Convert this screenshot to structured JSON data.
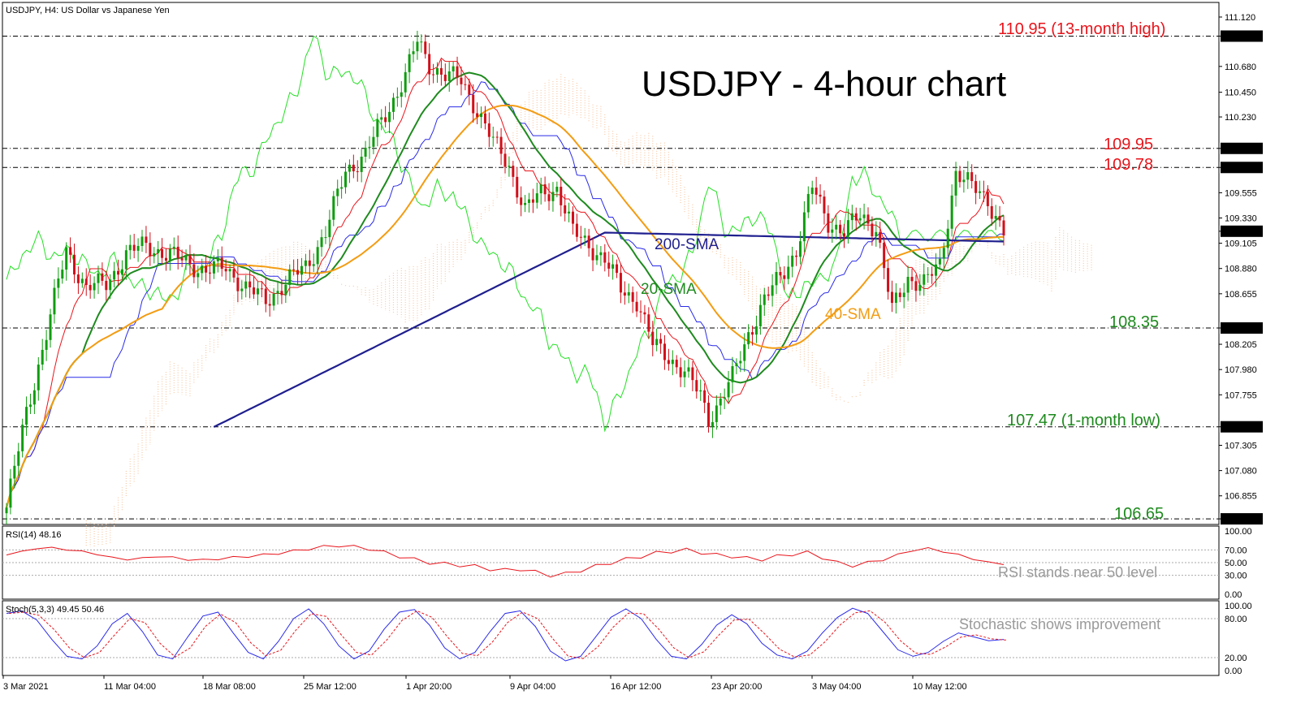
{
  "chart_data": {
    "type": "candlestick",
    "symbol_header": "USDJPY, H4:  US Dollar vs Japanese Yen",
    "title": "USDJPY - 4-hour chart",
    "price_axis": {
      "range": [
        106.6,
        111.25
      ],
      "ticks": [
        "111.120",
        "110.950",
        "110.680",
        "110.450",
        "110.230",
        "109.950",
        "109.780",
        "109.555",
        "109.330",
        "109.212",
        "109.105",
        "108.880",
        "108.655",
        "108.350",
        "108.205",
        "107.980",
        "107.755",
        "107.470",
        "107.305",
        "107.080",
        "106.855",
        "106.650"
      ],
      "tick_values": [
        111.12,
        110.95,
        110.68,
        110.45,
        110.23,
        109.95,
        109.78,
        109.555,
        109.33,
        109.212,
        109.105,
        108.88,
        108.655,
        108.35,
        108.205,
        107.98,
        107.755,
        107.47,
        107.305,
        107.08,
        106.855,
        106.65
      ],
      "highlighted_ticks": [
        110.95,
        109.95,
        109.78,
        109.212,
        108.35,
        107.47,
        106.65
      ]
    },
    "levels": [
      {
        "value": 110.95,
        "label": "110.95 (13-month high)",
        "color": "#e8141b"
      },
      {
        "value": 109.95,
        "label": "109.95",
        "color": "#e8141b"
      },
      {
        "value": 109.78,
        "label": "109.78",
        "color": "#e8141b"
      },
      {
        "value": 108.35,
        "label": "108.35",
        "color": "#1e8a1e"
      },
      {
        "value": 107.47,
        "label": "107.47 (1-month low)",
        "color": "#1e8a1e"
      },
      {
        "value": 106.65,
        "label": "106.65",
        "color": "#1e8a1e"
      }
    ],
    "ma_labels": [
      {
        "label": "200-SMA",
        "color": "#1f1f8f"
      },
      {
        "label": "20-SMA",
        "color": "#1e8a1e"
      },
      {
        "label": "40-SMA",
        "color": "#f39c12"
      }
    ],
    "x_labels": [
      "3 Mar 2021",
      "11 Mar 04:00",
      "18 Mar 08:00",
      "25 Mar 12:00",
      "1 Apr 20:00",
      "9 Apr 04:00",
      "16 Apr 12:00",
      "23 Apr 20:00",
      "3 May 04:00",
      "10 May 12:00"
    ],
    "close_keypoints": [
      [
        0,
        106.75
      ],
      [
        5,
        107.6
      ],
      [
        10,
        108.3
      ],
      [
        15,
        109.05
      ],
      [
        20,
        108.7
      ],
      [
        25,
        108.75
      ],
      [
        30,
        109.0
      ],
      [
        35,
        109.1
      ],
      [
        40,
        109.0
      ],
      [
        45,
        108.95
      ],
      [
        50,
        108.85
      ],
      [
        55,
        108.9
      ],
      [
        60,
        108.7
      ],
      [
        65,
        108.6
      ],
      [
        70,
        108.75
      ],
      [
        75,
        108.9
      ],
      [
        80,
        109.2
      ],
      [
        85,
        109.75
      ],
      [
        90,
        109.9
      ],
      [
        95,
        110.25
      ],
      [
        100,
        110.6
      ],
      [
        103,
        110.9
      ],
      [
        106,
        110.7
      ],
      [
        110,
        110.6
      ],
      [
        114,
        110.55
      ],
      [
        118,
        110.3
      ],
      [
        122,
        110.0
      ],
      [
        126,
        109.8
      ],
      [
        130,
        109.4
      ],
      [
        134,
        109.55
      ],
      [
        138,
        109.6
      ],
      [
        142,
        109.2
      ],
      [
        146,
        109.1
      ],
      [
        150,
        108.95
      ],
      [
        154,
        108.7
      ],
      [
        158,
        108.6
      ],
      [
        162,
        108.2
      ],
      [
        166,
        108.1
      ],
      [
        170,
        107.95
      ],
      [
        174,
        107.75
      ],
      [
        176,
        107.55
      ],
      [
        178,
        107.65
      ],
      [
        182,
        107.9
      ],
      [
        186,
        108.3
      ],
      [
        190,
        108.6
      ],
      [
        194,
        108.8
      ],
      [
        198,
        109.05
      ],
      [
        202,
        109.6
      ],
      [
        206,
        109.3
      ],
      [
        210,
        109.2
      ],
      [
        214,
        109.35
      ],
      [
        218,
        109.25
      ],
      [
        222,
        108.5
      ],
      [
        226,
        108.8
      ],
      [
        230,
        108.75
      ],
      [
        234,
        108.9
      ],
      [
        238,
        109.75
      ],
      [
        242,
        109.6
      ],
      [
        246,
        109.5
      ],
      [
        250,
        109.2
      ]
    ],
    "sma200": {
      "start": 108.8,
      "slope": 0.0105
    },
    "rsi": {
      "label": "RSI(14) 48.16",
      "ticks": [
        "100.00",
        "70.00",
        "50.00",
        "30.00",
        "0.00"
      ],
      "tick_values": [
        100,
        70,
        50,
        30,
        0
      ],
      "annotation": "RSI stands near 50 level",
      "values": [
        62,
        68,
        72,
        74,
        70,
        68,
        63,
        58,
        55,
        57,
        60,
        58,
        55,
        54,
        56,
        58,
        60,
        62,
        65,
        68,
        72,
        75,
        77,
        75,
        72,
        66,
        60,
        55,
        50,
        48,
        46,
        44,
        40,
        38,
        40,
        35,
        30,
        32,
        38,
        44,
        50,
        55,
        60,
        65,
        68,
        70,
        66,
        62,
        60,
        57,
        55,
        60,
        63,
        66,
        58,
        50,
        45,
        50,
        55,
        62,
        70,
        72,
        68,
        62,
        56,
        50,
        48
      ]
    },
    "stochastic": {
      "label": "Stoch(5,3,3) 49.45 50.46",
      "ticks": [
        "100.00",
        "80.00",
        "20.00",
        "0.00"
      ],
      "tick_values": [
        100,
        80,
        20,
        0
      ],
      "annotation": "Stochastic shows improvement",
      "k": [
        88,
        92,
        78,
        48,
        22,
        18,
        38,
        72,
        88,
        60,
        24,
        18,
        52,
        84,
        90,
        58,
        28,
        18,
        45,
        80,
        95,
        72,
        38,
        18,
        30,
        64,
        90,
        94,
        70,
        35,
        18,
        28,
        60,
        88,
        92,
        68,
        30,
        15,
        22,
        52,
        82,
        95,
        80,
        48,
        22,
        18,
        40,
        70,
        86,
        72,
        42,
        24,
        18,
        30,
        58,
        82,
        96,
        88,
        60,
        32,
        22,
        28,
        45,
        58,
        52,
        46,
        48
      ]
    }
  }
}
